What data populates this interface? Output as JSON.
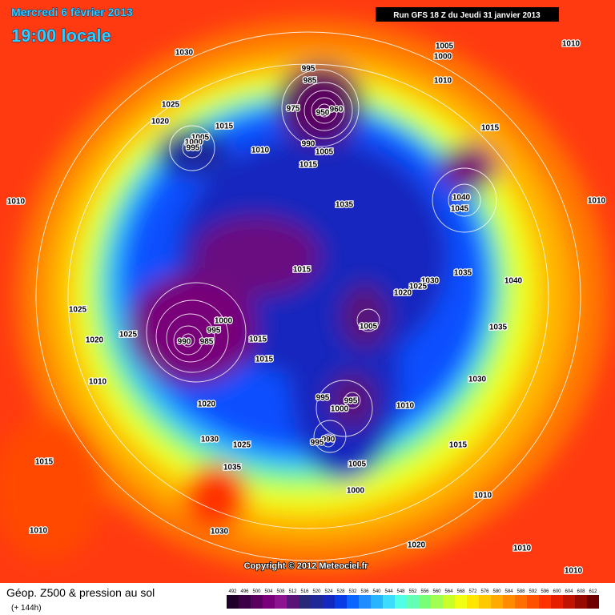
{
  "header": {
    "date": "Mercredi 6 février 2013",
    "time": "19:00 locale",
    "run": "Run GFS 18 Z du Jeudi 31 janvier 2013"
  },
  "footer": {
    "title": "Géop. Z500 & pression au sol",
    "subtitle": "(+ 144h)",
    "copyright": "Copyright © 2012 Meteociel.fr"
  },
  "isobar_labels": [
    "1030",
    "995",
    "985",
    "975",
    "960",
    "950",
    "1005",
    "1000",
    "1010",
    "1010",
    "1025",
    "1020",
    "1015",
    "1005",
    "1000",
    "995",
    "1010",
    "990",
    "1005",
    "1015",
    "1015",
    "1035",
    "1040",
    "1045",
    "1010",
    "1010",
    "1015",
    "1035",
    "1030",
    "1025",
    "1020",
    "1040",
    "1025",
    "1005",
    "1035",
    "1000",
    "995",
    "990",
    "985",
    "1025",
    "1020",
    "1015",
    "1015",
    "1010",
    "1030",
    "995",
    "995",
    "1000",
    "1010",
    "1020",
    "990",
    "995",
    "1030",
    "1025",
    "1015",
    "1015",
    "1035",
    "1005",
    "1000",
    "1010",
    "1010",
    "1030",
    "1020",
    "1010",
    "1010"
  ],
  "legend": {
    "values": [
      492,
      496,
      500,
      504,
      508,
      512,
      516,
      520,
      524,
      528,
      532,
      536,
      540,
      544,
      548,
      552,
      556,
      560,
      564,
      568,
      572,
      576,
      580,
      584,
      588,
      592,
      596,
      600,
      604,
      608,
      612
    ],
    "colors": [
      "#1e0028",
      "#3c0046",
      "#5a005f",
      "#780078",
      "#8c1490",
      "#5a1478",
      "#282878",
      "#1e2896",
      "#1428be",
      "#0a3ce6",
      "#0a64ff",
      "#1e8cff",
      "#28b4ff",
      "#3cdcff",
      "#50ffe6",
      "#64ffb4",
      "#78ff78",
      "#a0ff50",
      "#c8ff28",
      "#f0ff14",
      "#ffe600",
      "#ffc800",
      "#ffaa00",
      "#ff8c00",
      "#ff6e00",
      "#ff5000",
      "#ff3200",
      "#e61e00",
      "#be1400",
      "#960a00",
      "#6e0000"
    ]
  }
}
